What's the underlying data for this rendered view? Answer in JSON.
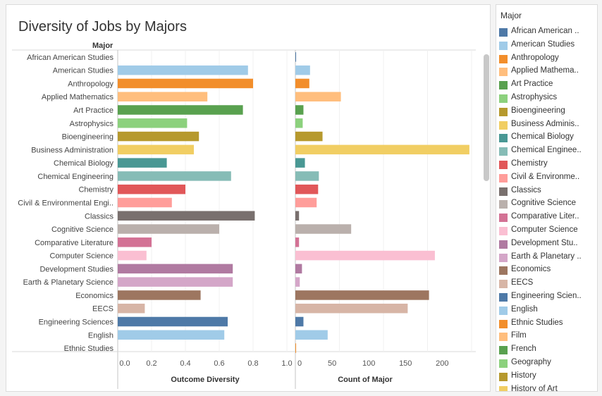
{
  "title": "Diversity of Jobs by Majors",
  "legend": {
    "title": "Major",
    "items": [
      {
        "label": "African American ..",
        "color": "#4e79a7"
      },
      {
        "label": "American Studies",
        "color": "#a0cbe8"
      },
      {
        "label": "Anthropology",
        "color": "#f28e2b"
      },
      {
        "label": "Applied Mathema..",
        "color": "#ffbe7d"
      },
      {
        "label": "Art Practice",
        "color": "#59a14f"
      },
      {
        "label": "Astrophysics",
        "color": "#8cd17d"
      },
      {
        "label": "Bioengineering",
        "color": "#b6992d"
      },
      {
        "label": "Business Adminis..",
        "color": "#f1ce63"
      },
      {
        "label": "Chemical Biology",
        "color": "#499894"
      },
      {
        "label": "Chemical Enginee..",
        "color": "#86bcb6"
      },
      {
        "label": "Chemistry",
        "color": "#e15759"
      },
      {
        "label": "Civil & Environme..",
        "color": "#ff9d9a"
      },
      {
        "label": "Classics",
        "color": "#79706e"
      },
      {
        "label": "Cognitive Science",
        "color": "#bab0ac"
      },
      {
        "label": "Comparative Liter..",
        "color": "#d37295"
      },
      {
        "label": "Computer Science",
        "color": "#fabfd2"
      },
      {
        "label": "Development Stu..",
        "color": "#b07aa1"
      },
      {
        "label": "Earth & Planetary ..",
        "color": "#d4a6c8"
      },
      {
        "label": "Economics",
        "color": "#9d7660"
      },
      {
        "label": "EECS",
        "color": "#d7b5a6"
      },
      {
        "label": "Engineering Scien..",
        "color": "#4e79a7"
      },
      {
        "label": "English",
        "color": "#a0cbe8"
      },
      {
        "label": "Ethnic Studies",
        "color": "#f28e2b"
      },
      {
        "label": "Film",
        "color": "#ffbe7d"
      },
      {
        "label": "French",
        "color": "#59a14f"
      },
      {
        "label": "Geography",
        "color": "#8cd17d"
      },
      {
        "label": "History",
        "color": "#b6992d"
      },
      {
        "label": "History of Art",
        "color": "#f1ce63"
      }
    ]
  },
  "chart_data": {
    "type": "bar",
    "orientation": "horizontal",
    "row_header": "Major",
    "categories": [
      "African American Studies",
      "American Studies",
      "Anthropology",
      "Applied Mathematics",
      "Art Practice",
      "Astrophysics",
      "Bioengineering",
      "Business Administration",
      "Chemical Biology",
      "Chemical Engineering",
      "Chemistry",
      "Civil & Environmental Engi..",
      "Classics",
      "Cognitive Science",
      "Comparative Literature",
      "Computer Science",
      "Development Studies",
      "Earth & Planetary Science",
      "Economics",
      "EECS",
      "Engineering Sciences",
      "English",
      "Ethnic Studies"
    ],
    "colors": [
      "#4e79a7",
      "#a0cbe8",
      "#f28e2b",
      "#ffbe7d",
      "#59a14f",
      "#8cd17d",
      "#b6992d",
      "#f1ce63",
      "#499894",
      "#86bcb6",
      "#e15759",
      "#ff9d9a",
      "#79706e",
      "#bab0ac",
      "#d37295",
      "#fabfd2",
      "#b07aa1",
      "#d4a6c8",
      "#9d7660",
      "#d7b5a6",
      "#4e79a7",
      "#a0cbe8",
      "#f28e2b"
    ],
    "series": [
      {
        "name": "Outcome Diversity",
        "xlabel": "Outcome Diversity",
        "xlim": [
          0,
          1.0
        ],
        "ticks": [
          "0.0",
          "0.2",
          "0.4",
          "0.6",
          "0.8",
          "1.0"
        ],
        "values": [
          0.0,
          0.77,
          0.8,
          0.53,
          0.74,
          0.41,
          0.48,
          0.45,
          0.29,
          0.67,
          0.4,
          0.32,
          0.81,
          0.6,
          0.2,
          0.17,
          0.68,
          0.68,
          0.49,
          0.16,
          0.65,
          0.63,
          0.0
        ]
      },
      {
        "name": "Count of Major",
        "xlabel": "Count of Major",
        "xlim": [
          0,
          240
        ],
        "ticks": [
          "0",
          "50",
          "100",
          "150",
          "200"
        ],
        "values": [
          1,
          20,
          19,
          62,
          11,
          10,
          37,
          237,
          13,
          32,
          31,
          29,
          5,
          76,
          5,
          190,
          9,
          6,
          182,
          153,
          11,
          44,
          1
        ]
      }
    ]
  }
}
